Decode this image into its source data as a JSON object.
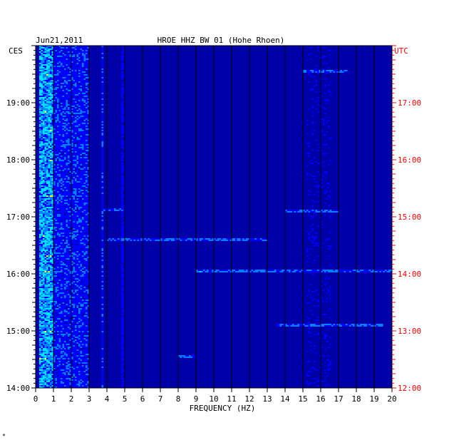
{
  "header": {
    "date": "Jun21,2011",
    "station": "HROE HHZ BW 01 (Hohe Rhoen)",
    "left_timezone": "CES",
    "right_timezone": "UTC"
  },
  "footer_mark": "*",
  "chart_data": {
    "type": "heatmap",
    "title": "HROE HHZ BW 01 (Hohe Rhoen)",
    "date": "Jun21,2011",
    "xlabel": "FREQUENCY (HZ)",
    "xlim": [
      0,
      20
    ],
    "x_ticks": [
      0,
      1,
      2,
      3,
      4,
      5,
      6,
      7,
      8,
      9,
      10,
      11,
      12,
      13,
      14,
      15,
      16,
      17,
      18,
      19,
      20
    ],
    "y_axis_left": {
      "timezone": "CES",
      "range_hours": [
        14.0,
        20.0
      ],
      "tick_labels": [
        "14:00",
        "15:00",
        "16:00",
        "17:00",
        "18:00",
        "19:00"
      ],
      "tick_values": [
        14,
        15,
        16,
        17,
        18,
        19
      ]
    },
    "y_axis_right": {
      "timezone": "UTC",
      "range_hours": [
        12.0,
        18.0
      ],
      "tick_labels": [
        "12:00",
        "13:00",
        "14:00",
        "15:00",
        "16:00",
        "17:00"
      ],
      "tick_values": [
        12,
        13,
        14,
        15,
        16,
        17
      ]
    },
    "colormap": [
      "#00008b",
      "#0000ff",
      "#0080ff",
      "#00e5ff",
      "#ffff00",
      "#ff0000"
    ],
    "background_color": "#0000a8",
    "grid": true,
    "features": [
      {
        "kind": "band",
        "freq_from": 0.2,
        "freq_to": 1.0,
        "intensity": "high"
      },
      {
        "kind": "band",
        "freq_from": 1.0,
        "freq_to": 3.0,
        "intensity": "medium"
      },
      {
        "kind": "line",
        "freq": 3.75,
        "intensity": "medium"
      },
      {
        "kind": "line",
        "freq": 4.9,
        "intensity": "low"
      },
      {
        "kind": "band",
        "freq_from": 15.2,
        "freq_to": 16.6,
        "intensity": "low"
      },
      {
        "kind": "event",
        "time": 16.05,
        "freq_from": 9.0,
        "freq_to": 20.0
      },
      {
        "kind": "event",
        "time": 17.1,
        "freq_from": 14.0,
        "freq_to": 17.0
      },
      {
        "kind": "event",
        "time": 17.13,
        "freq_from": 3.8,
        "freq_to": 5.0
      },
      {
        "kind": "event",
        "time": 16.6,
        "freq_from": 4.0,
        "freq_to": 13.0
      },
      {
        "kind": "event",
        "time": 15.1,
        "freq_from": 13.5,
        "freq_to": 19.5
      },
      {
        "kind": "event",
        "time": 14.55,
        "freq_from": 8.0,
        "freq_to": 9.0
      },
      {
        "kind": "event",
        "time": 19.55,
        "freq_from": 15.0,
        "freq_to": 17.5
      }
    ]
  }
}
